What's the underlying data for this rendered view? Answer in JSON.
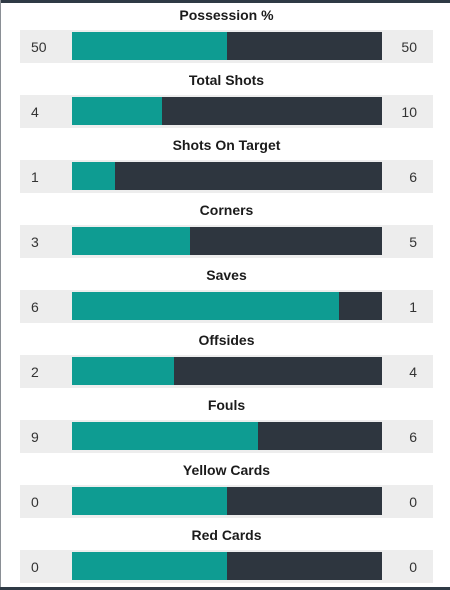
{
  "stats": [
    {
      "title": "Possession %",
      "home": "50",
      "away": "50",
      "home_fraction": 0.5
    },
    {
      "title": "Total Shots",
      "home": "4",
      "away": "10",
      "home_fraction": 0.29
    },
    {
      "title": "Shots On Target",
      "home": "1",
      "away": "6",
      "home_fraction": 0.14
    },
    {
      "title": "Corners",
      "home": "3",
      "away": "5",
      "home_fraction": 0.38
    },
    {
      "title": "Saves",
      "home": "6",
      "away": "1",
      "home_fraction": 0.86
    },
    {
      "title": "Offsides",
      "home": "2",
      "away": "4",
      "home_fraction": 0.33
    },
    {
      "title": "Fouls",
      "home": "9",
      "away": "6",
      "home_fraction": 0.6
    },
    {
      "title": "Yellow Cards",
      "home": "0",
      "away": "0",
      "home_fraction": 0.5
    },
    {
      "title": "Red Cards",
      "home": "0",
      "away": "0",
      "home_fraction": 0.5
    }
  ],
  "colors": {
    "home_bar": "#0e9c92",
    "away_bar": "#2e363f",
    "row_background": "#ededed"
  }
}
